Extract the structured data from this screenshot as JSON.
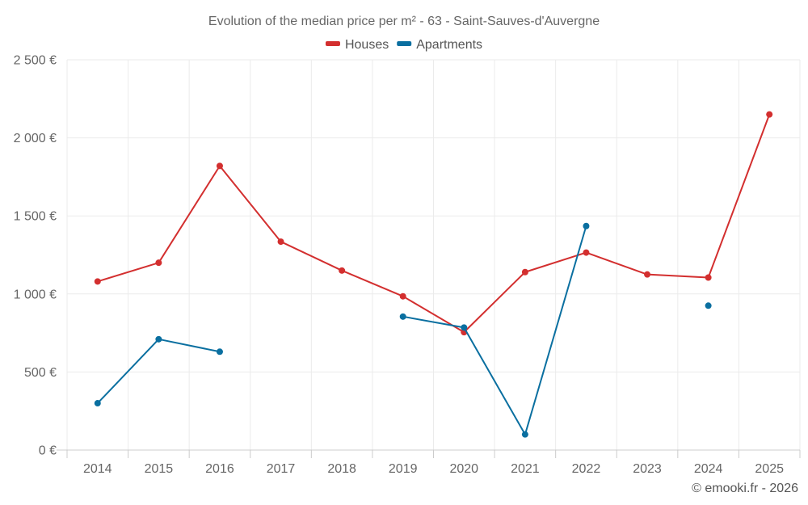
{
  "chart_data": {
    "type": "line",
    "title": "Evolution of the median price per m² - 63 - Saint-Sauves-d'Auvergne",
    "categories": [
      "2014",
      "2015",
      "2016",
      "2017",
      "2018",
      "2019",
      "2020",
      "2021",
      "2022",
      "2023",
      "2024",
      "2025"
    ],
    "series": [
      {
        "name": "Houses",
        "color": "#d32f2f",
        "values": [
          1080,
          1200,
          1820,
          1335,
          1150,
          985,
          755,
          1140,
          1265,
          1125,
          1105,
          2150
        ]
      },
      {
        "name": "Apartments",
        "color": "#0a6fa0",
        "values": [
          300,
          710,
          630,
          null,
          null,
          855,
          785,
          100,
          1435,
          null,
          925,
          null
        ]
      }
    ],
    "ylim": [
      0,
      2500
    ],
    "yticks": [
      0,
      500,
      1000,
      1500,
      2000,
      2500
    ],
    "ytick_labels": [
      "0 €",
      "500 €",
      "1 000 €",
      "1 500 €",
      "2 000 €",
      "2 500 €"
    ],
    "xlabel": "",
    "ylabel": "",
    "grid": true,
    "legend_position": "top-center"
  },
  "credit": "© emooki.fr - 2026"
}
